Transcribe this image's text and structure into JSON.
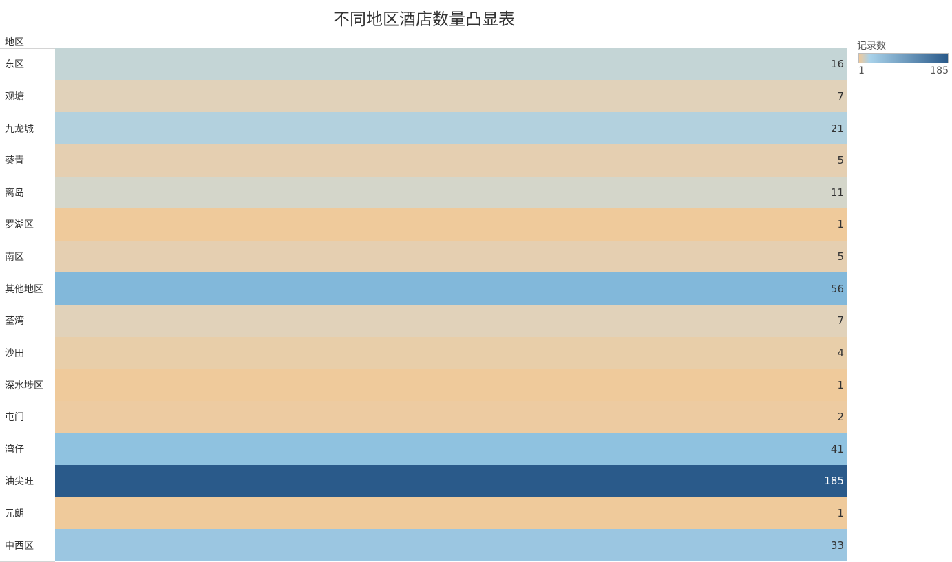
{
  "chart_data": {
    "type": "heatmap",
    "title": "不同地区酒店数量凸显表",
    "row_header": "地区",
    "legend": {
      "title": "记录数",
      "min": 1,
      "max": 185,
      "min_label": "1",
      "max_label": "185",
      "colors": {
        "low": "#f0c99a",
        "mid": "#a9d2ea",
        "high": "#2a5a8a"
      }
    },
    "rows": [
      {
        "label": "东区",
        "value": 16,
        "color": "#c4d5d6"
      },
      {
        "label": "观塘",
        "value": 7,
        "color": "#e1d2ba"
      },
      {
        "label": "九龙城",
        "value": 21,
        "color": "#b3d1de"
      },
      {
        "label": "葵青",
        "value": 5,
        "color": "#e5cfb1"
      },
      {
        "label": "离岛",
        "value": 11,
        "color": "#d4d6ca"
      },
      {
        "label": "罗湖区",
        "value": 1,
        "color": "#efca9b"
      },
      {
        "label": "南区",
        "value": 5,
        "color": "#e5cfb1"
      },
      {
        "label": "其他地区",
        "value": 56,
        "color": "#82b8da"
      },
      {
        "label": "荃湾",
        "value": 7,
        "color": "#e1d2ba"
      },
      {
        "label": "沙田",
        "value": 4,
        "color": "#e8cea9"
      },
      {
        "label": "深水埗区",
        "value": 1,
        "color": "#efca9b"
      },
      {
        "label": "屯门",
        "value": 2,
        "color": "#edcba1"
      },
      {
        "label": "湾仔",
        "value": 41,
        "color": "#8fc2e0"
      },
      {
        "label": "油尖旺",
        "value": 185,
        "color": "#2a5a8a"
      },
      {
        "label": "元朗",
        "value": 1,
        "color": "#efca9b"
      },
      {
        "label": "中西区",
        "value": 33,
        "color": "#9bc6e1"
      }
    ]
  }
}
